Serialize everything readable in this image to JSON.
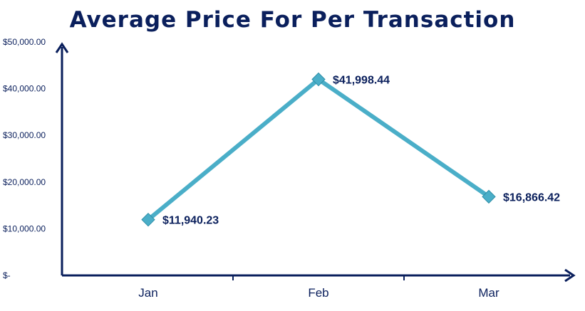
{
  "chart_data": {
    "type": "line",
    "title": "Average Price For Per Transaction",
    "categories": [
      "Jan",
      "Feb",
      "Mar"
    ],
    "series": [
      {
        "values": [
          11940.23,
          41998.44,
          16866.42
        ],
        "data_labels": [
          "$11,940.23",
          "$41,998.44",
          "$16,866.42"
        ]
      }
    ],
    "y_ticks": [
      {
        "value": 0,
        "label": "$-"
      },
      {
        "value": 10000,
        "label": "$10,000.00"
      },
      {
        "value": 20000,
        "label": "$20,000.00"
      },
      {
        "value": 30000,
        "label": "$30,000.00"
      },
      {
        "value": 40000,
        "label": "$40,000.00"
      },
      {
        "value": 50000,
        "label": "$50,000.00"
      }
    ],
    "ylim": [
      0,
      50000
    ],
    "grid": false,
    "legend": "none",
    "colors": {
      "line": "#4aaec8",
      "marker": "#4aaec8",
      "axis": "#0a1f5c",
      "text": "#0a1f5c"
    }
  }
}
